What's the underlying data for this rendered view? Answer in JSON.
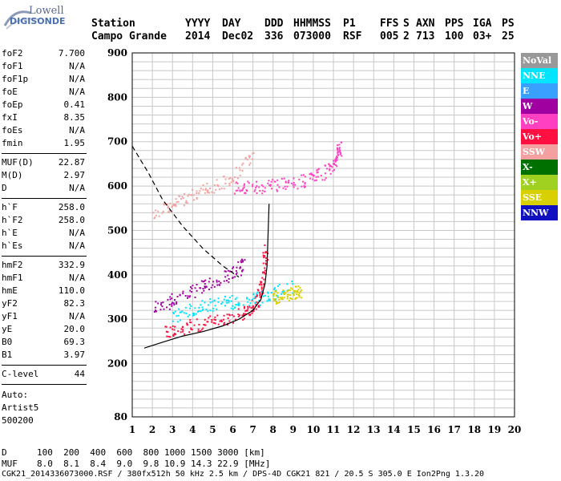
{
  "logo": {
    "line1": "Lowell",
    "line2": "DIGISONDE"
  },
  "header": {
    "labels": [
      "Station",
      "YYYY",
      "DAY",
      "DDD",
      "HHMMSS",
      "P1",
      "FFS",
      "S",
      "AXN",
      "PPS",
      "IGA",
      "PS"
    ],
    "values": [
      "Campo Grande",
      "2014",
      "Dec02",
      "336",
      "073000",
      "RSF",
      "005",
      "2",
      "713",
      "100",
      "03+",
      "25"
    ]
  },
  "scaled": [
    {
      "k": "foF2",
      "v": "7.700"
    },
    {
      "k": "foF1",
      "v": "N/A"
    },
    {
      "k": "foF1p",
      "v": "N/A"
    },
    {
      "k": "foE",
      "v": "N/A"
    },
    {
      "k": "foEp",
      "v": "0.41"
    },
    {
      "k": "fxI",
      "v": "8.35"
    },
    {
      "k": "foEs",
      "v": "N/A"
    },
    {
      "k": "fmin",
      "v": "1.95"
    },
    {
      "k": "MUF(D)",
      "v": "22.87"
    },
    {
      "k": "M(D)",
      "v": "2.97"
    },
    {
      "k": "D",
      "v": "N/A"
    },
    {
      "k": "h`F",
      "v": "258.0"
    },
    {
      "k": "h`F2",
      "v": "258.0"
    },
    {
      "k": "h`E",
      "v": "N/A"
    },
    {
      "k": "h`Es",
      "v": "N/A"
    },
    {
      "k": "hmF2",
      "v": "332.9"
    },
    {
      "k": "hmF1",
      "v": "N/A"
    },
    {
      "k": "hmE",
      "v": "110.0"
    },
    {
      "k": "yF2",
      "v": "82.3"
    },
    {
      "k": "yF1",
      "v": "N/A"
    },
    {
      "k": "yE",
      "v": "20.0"
    },
    {
      "k": "B0",
      "v": "69.3"
    },
    {
      "k": "B1",
      "v": "3.97"
    },
    {
      "k": "C-level",
      "v": "44"
    }
  ],
  "auto": [
    "Auto:",
    "Artist5",
    "500200"
  ],
  "legend": [
    {
      "label": "NoVal",
      "color": "#999999"
    },
    {
      "label": "NNE",
      "color": "#00e5ff"
    },
    {
      "label": "E",
      "color": "#3aa0ff"
    },
    {
      "label": "W",
      "color": "#a000a0"
    },
    {
      "label": "Vo-",
      "color": "#ff40c0"
    },
    {
      "label": "Vo+",
      "color": "#ff1040"
    },
    {
      "label": "SSW",
      "color": "#f4a0a0"
    },
    {
      "label": "X-",
      "color": "#007000"
    },
    {
      "label": "X+",
      "color": "#a0d020"
    },
    {
      "label": "SSE",
      "color": "#d8d000"
    },
    {
      "label": "NNW",
      "color": "#1010c0"
    }
  ],
  "footer": {
    "d_label": "D",
    "d_values": "100  200  400  600  800 1000 1500 3000 [km]",
    "muf_label": "MUF",
    "muf_values": "8.0  8.1  8.4  9.0  9.8 10.9 14.3 22.9 [MHz]",
    "file_line": "CGK21_2014336073000.RSF / 380fx512h 50 kHz 2.5 km / DPS-4D CGK21 821 / 20.5 S 305.0 E Ion2Png 1.3.20"
  },
  "chart_data": {
    "type": "scatter",
    "title": "",
    "xlabel": "",
    "ylabel": "",
    "x_ticks": [
      "1",
      "2",
      "3",
      "4",
      "5",
      "6",
      "7",
      "8",
      "9",
      "10",
      "11",
      "12",
      "13",
      "14",
      "15",
      "16",
      "17",
      "18",
      "19",
      "20"
    ],
    "y_ticks": [
      "80",
      "200",
      "300",
      "400",
      "500",
      "600",
      "700",
      "800",
      "900"
    ],
    "xlim": [
      1,
      20
    ],
    "ylim": [
      80,
      900
    ],
    "grid": true,
    "series": [
      {
        "name": "NoVal",
        "values": []
      },
      {
        "name": "NNE",
        "values": []
      },
      {
        "name": "E",
        "values": []
      },
      {
        "name": "W",
        "values": []
      },
      {
        "name": "Vo-",
        "values": []
      },
      {
        "name": "Vo+",
        "values": []
      },
      {
        "name": "SSW",
        "values": []
      },
      {
        "name": "X-",
        "values": []
      },
      {
        "name": "X+",
        "values": []
      },
      {
        "name": "SSE",
        "values": []
      },
      {
        "name": "NNW",
        "values": []
      }
    ],
    "profile_solid": [
      [
        1.6,
        235
      ],
      [
        2.5,
        248
      ],
      [
        3.5,
        262
      ],
      [
        4.5,
        272
      ],
      [
        5.5,
        285
      ],
      [
        6.3,
        300
      ],
      [
        7.0,
        320
      ],
      [
        7.4,
        345
      ],
      [
        7.6,
        380
      ],
      [
        7.7,
        420
      ],
      [
        7.8,
        560
      ]
    ],
    "profile_dashed": [
      [
        1.0,
        690
      ],
      [
        1.8,
        630
      ],
      [
        2.5,
        570
      ],
      [
        3.5,
        510
      ],
      [
        4.5,
        460
      ],
      [
        5.5,
        420
      ],
      [
        6.3,
        395
      ]
    ],
    "traces": [
      {
        "color": "#ff1040",
        "points": [
          [
            2.5,
            270
          ],
          [
            3.5,
            282
          ],
          [
            4.5,
            290
          ],
          [
            5.5,
            300
          ],
          [
            6.5,
            315
          ],
          [
            7.0,
            330
          ],
          [
            7.3,
            355
          ],
          [
            7.5,
            400
          ],
          [
            7.6,
            460
          ]
        ]
      },
      {
        "color": "#a000a0",
        "points": [
          [
            2.0,
            325
          ],
          [
            3.0,
            345
          ],
          [
            4.0,
            365
          ],
          [
            5.0,
            385
          ],
          [
            6.0,
            405
          ],
          [
            6.5,
            425
          ]
        ]
      },
      {
        "color": "#00e5ff",
        "points": [
          [
            3.0,
            305
          ],
          [
            4.0,
            325
          ],
          [
            5.0,
            335
          ],
          [
            6.0,
            340
          ],
          [
            7.0,
            345
          ],
          [
            8.0,
            360
          ],
          [
            9.0,
            375
          ]
        ]
      },
      {
        "color": "#ff40c0",
        "points": [
          [
            6.0,
            596
          ],
          [
            7.0,
            598
          ],
          [
            8.0,
            602
          ],
          [
            9.0,
            608
          ],
          [
            10.0,
            620
          ],
          [
            10.8,
            640
          ],
          [
            11.2,
            660
          ],
          [
            11.3,
            700
          ]
        ]
      },
      {
        "color": "#d8d000",
        "points": [
          [
            8.0,
            350
          ],
          [
            8.5,
            355
          ],
          [
            9.0,
            360
          ],
          [
            9.3,
            365
          ]
        ]
      },
      {
        "color": "#f4a0a0",
        "points": [
          [
            2.0,
            540
          ],
          [
            3.0,
            560
          ],
          [
            4.0,
            580
          ],
          [
            5.0,
            600
          ],
          [
            6.0,
            620
          ],
          [
            7.0,
            680
          ]
        ]
      }
    ]
  }
}
